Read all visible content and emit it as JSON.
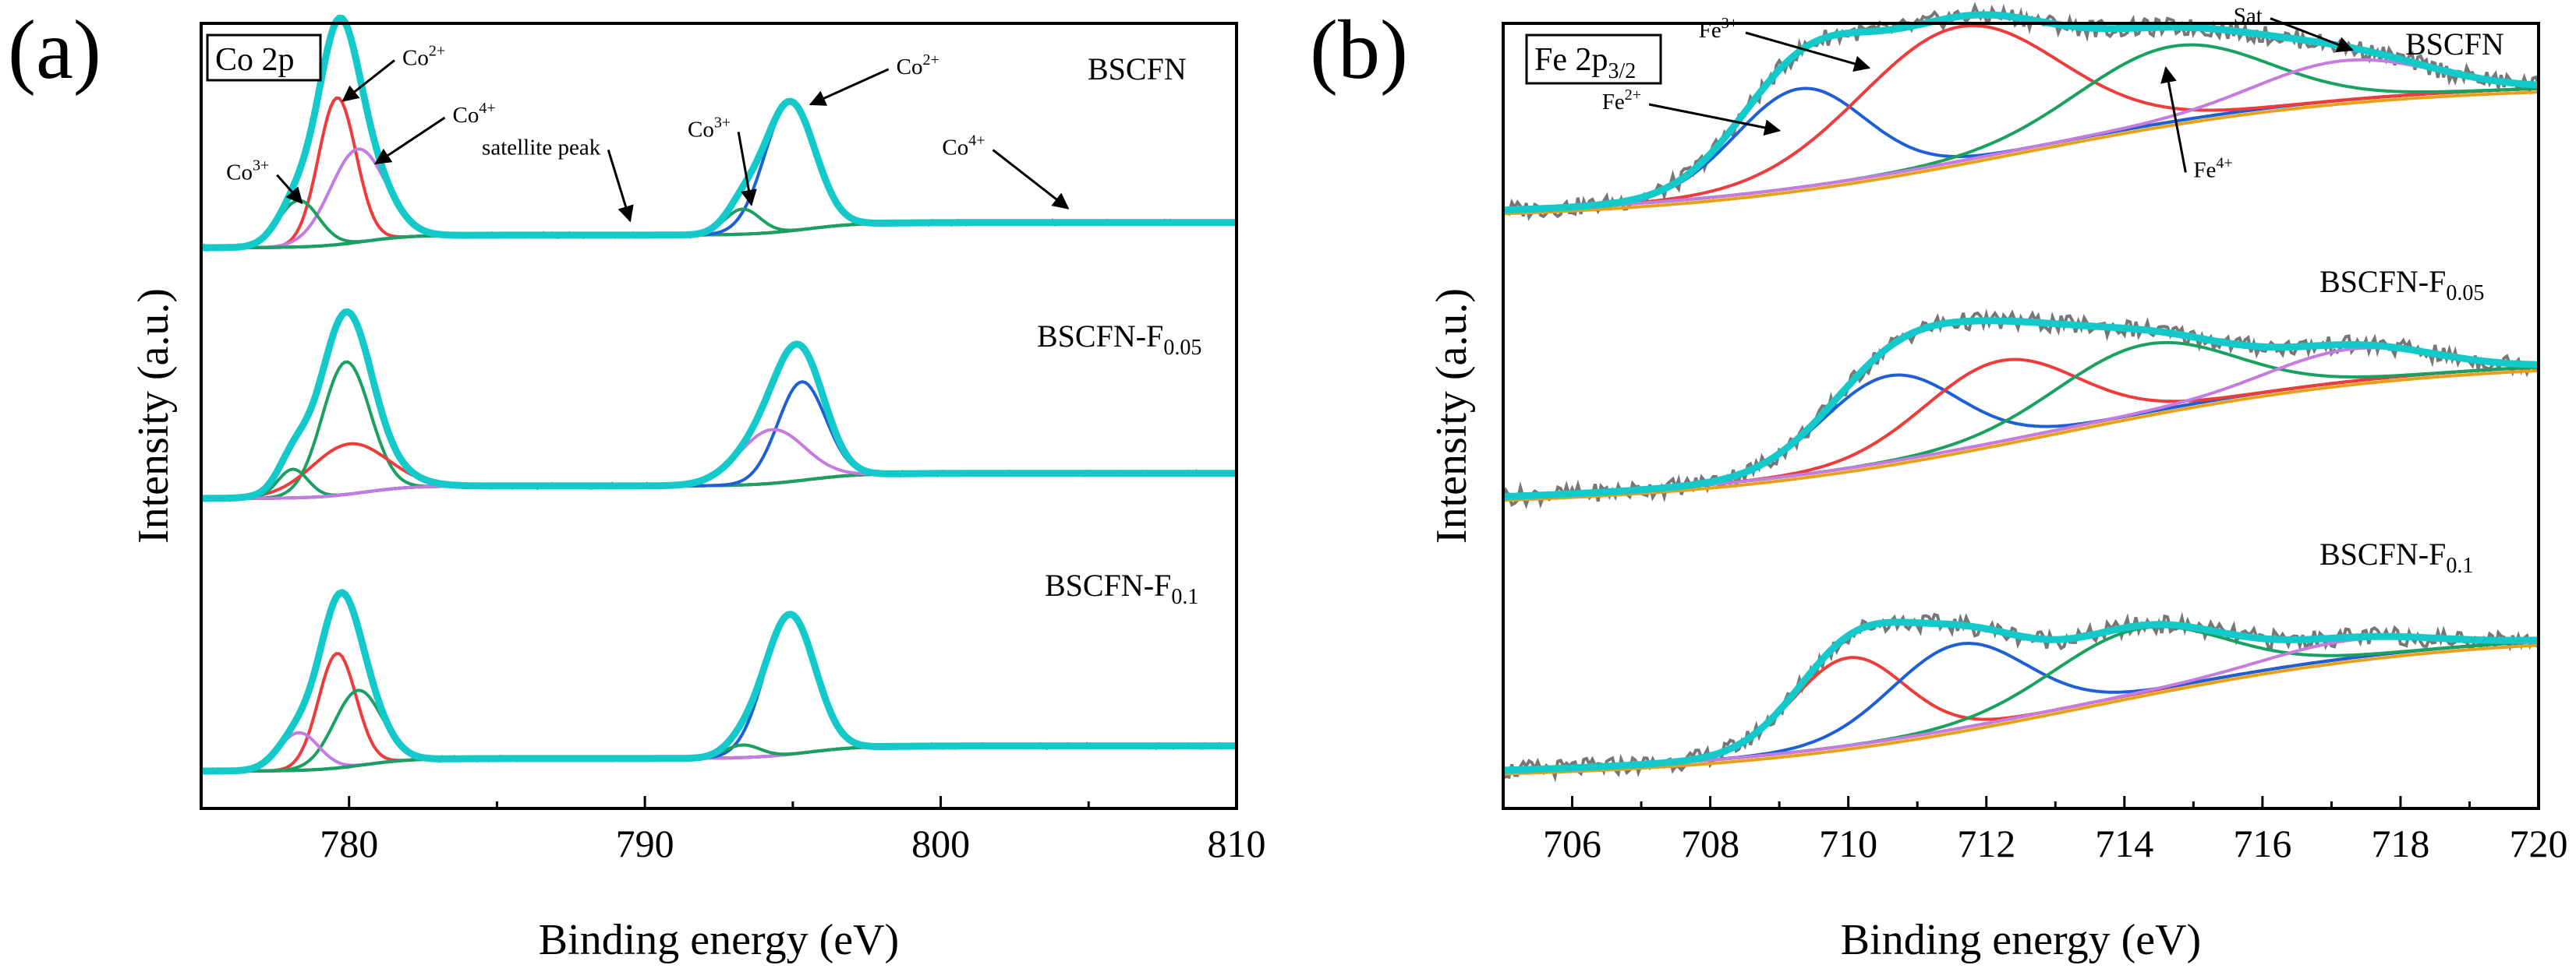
{
  "colors": {
    "experimental": "#777777",
    "envelope": "#14c9c9",
    "background": "#8b8d12",
    "background_alt": "#e8a018",
    "red": "#ee3b3b",
    "green": "#1aa060",
    "blue": "#1f5fd6",
    "magenta": "#c57be0"
  },
  "chart_data": [
    {
      "type": "line",
      "panel": "(a)",
      "element_label": "Co 2p",
      "xlabel": "Binding energy (eV)",
      "ylabel": "Intensity (a.u.)",
      "xlim": [
        775,
        810
      ],
      "x_ticks": [
        780,
        790,
        800,
        810
      ],
      "y_ticks": "none",
      "grid": false,
      "spectra": [
        {
          "sample": "BSCFN",
          "sample_sub": "",
          "baseline": {
            "left": 0.0,
            "right": 0.14,
            "step_center": 780.5,
            "step_width": 0.8,
            "step2_center": 795.5,
            "step2_height": 0.07
          },
          "components": [
            {
              "color": "red",
              "center": 779.6,
              "height": 0.82,
              "fwhm": 1.5
            },
            {
              "color": "magenta",
              "center": 780.3,
              "height": 0.52,
              "fwhm": 2.2
            },
            {
              "color": "green",
              "center": 778.3,
              "height": 0.26,
              "fwhm": 1.6
            },
            {
              "color": "blue",
              "center": 794.9,
              "height": 0.72,
              "fwhm": 2.0
            },
            {
              "color": "green",
              "center": 793.3,
              "height": 0.14,
              "fwhm": 1.4
            }
          ],
          "peak_labels": [
            {
              "text": "Co",
              "sup": "3+",
              "x": 777.3,
              "y": 0.38,
              "arrow_x": 778.4,
              "arrow_y": 0.25
            },
            {
              "text": "Co",
              "sup": "2+",
              "x": 781.8,
              "y": 1.02,
              "arrow_x": 779.8,
              "arrow_y": 0.82
            },
            {
              "text": "Co",
              "sup": "4+",
              "x": 783.5,
              "y": 0.7,
              "arrow_x": 780.9,
              "arrow_y": 0.47
            },
            {
              "text": "satellite peak",
              "sup": "",
              "x": 788.5,
              "y": 0.52,
              "arrow_x": 789.5,
              "arrow_y": 0.15
            },
            {
              "text": "Co",
              "sup": "3+",
              "x": 792.9,
              "y": 0.62,
              "arrow_x": 793.6,
              "arrow_y": 0.24
            },
            {
              "text": "Co",
              "sup": "2+",
              "x": 798.5,
              "y": 0.97,
              "arrow_x": 795.6,
              "arrow_y": 0.8
            },
            {
              "text": "Co",
              "sup": "4+",
              "x": 801.5,
              "y": 0.52,
              "arrow_x": 804.3,
              "arrow_y": 0.22
            }
          ]
        },
        {
          "sample": "BSCFN-F",
          "sample_sub": "0.05",
          "baseline": {
            "left": 0.0,
            "right": 0.14,
            "step_center": 780.5,
            "step_width": 0.8,
            "step2_center": 795.5,
            "step2_height": 0.07
          },
          "components": [
            {
              "color": "green",
              "center": 779.9,
              "height": 0.74,
              "fwhm": 1.9
            },
            {
              "color": "red",
              "center": 780.0,
              "height": 0.28,
              "fwhm": 3.0
            },
            {
              "color": "green",
              "center": 778.1,
              "height": 0.16,
              "fwhm": 1.2
            },
            {
              "color": "blue",
              "center": 795.3,
              "height": 0.55,
              "fwhm": 1.9
            },
            {
              "color": "magenta",
              "center": 794.3,
              "height": 0.3,
              "fwhm": 2.6
            }
          ],
          "peak_labels": []
        },
        {
          "sample": "BSCFN-F",
          "sample_sub": "0.1",
          "baseline": {
            "left": 0.0,
            "right": 0.14,
            "step_center": 780.5,
            "step_width": 0.8,
            "step2_center": 795.5,
            "step2_height": 0.07
          },
          "components": [
            {
              "color": "red",
              "center": 779.6,
              "height": 0.64,
              "fwhm": 1.5
            },
            {
              "color": "green",
              "center": 780.3,
              "height": 0.42,
              "fwhm": 1.9
            },
            {
              "color": "magenta",
              "center": 778.3,
              "height": 0.21,
              "fwhm": 1.6
            },
            {
              "color": "blue",
              "center": 794.9,
              "height": 0.78,
              "fwhm": 2.0
            },
            {
              "color": "green",
              "center": 793.3,
              "height": 0.07,
              "fwhm": 1.4
            }
          ],
          "peak_labels": []
        }
      ]
    },
    {
      "type": "line",
      "panel": "(b)",
      "element_label": "Fe 2p",
      "element_label_sub": "3/2",
      "xlabel": "Binding energy (eV)",
      "ylabel": "Intensity (a.u.)",
      "xlim": [
        705,
        720
      ],
      "x_ticks": [
        706,
        708,
        710,
        712,
        714,
        716,
        718,
        720
      ],
      "y_ticks": "none",
      "grid": false,
      "spectra": [
        {
          "sample": "BSCFN",
          "sample_sub": "",
          "baseline": {
            "left": 0.0,
            "right": 0.75,
            "step_center": 712.5,
            "step_width": 2.5
          },
          "components": [
            {
              "color": "blue",
              "center": 709.3,
              "height": 0.55,
              "fwhm": 2.2
            },
            {
              "color": "red",
              "center": 711.6,
              "height": 0.75,
              "fwhm": 3.4
            },
            {
              "color": "green",
              "center": 714.7,
              "height": 0.42,
              "fwhm": 3.2
            },
            {
              "color": "magenta",
              "center": 717.2,
              "height": 0.22,
              "fwhm": 3.0
            }
          ],
          "peak_labels": [
            {
              "text": "Fe",
              "sup": "2+",
              "x": 707.0,
              "y": 0.6,
              "arrow_x": 709.0,
              "arrow_y": 0.48
            },
            {
              "text": "Fe",
              "sup": "3+",
              "x": 708.4,
              "y": 1.0,
              "arrow_x": 710.3,
              "arrow_y": 0.83
            },
            {
              "text": "Fe",
              "sup": "4+",
              "x": 715.0,
              "y": 0.22,
              "arrow_x": 714.6,
              "arrow_y": 0.83
            },
            {
              "text": "Sat",
              "sup": "",
              "x": 716.0,
              "y": 1.08,
              "arrow_x": 717.3,
              "arrow_y": 0.93
            }
          ]
        },
        {
          "sample": "BSCFN-F",
          "sample_sub": "0.05",
          "baseline": {
            "left": -0.06,
            "right": 0.75,
            "step_center": 713.0,
            "step_width": 2.6
          },
          "components": [
            {
              "color": "blue",
              "center": 710.6,
              "height": 0.48,
              "fwhm": 2.3
            },
            {
              "color": "red",
              "center": 712.2,
              "height": 0.45,
              "fwhm": 2.6
            },
            {
              "color": "green",
              "center": 714.3,
              "height": 0.38,
              "fwhm": 3.0
            },
            {
              "color": "magenta",
              "center": 717.3,
              "height": 0.18,
              "fwhm": 2.8
            }
          ],
          "peak_labels": []
        },
        {
          "sample": "BSCFN-F",
          "sample_sub": "0.1",
          "baseline": {
            "left": -0.06,
            "right": 0.75,
            "step_center": 713.5,
            "step_width": 2.6
          },
          "components": [
            {
              "color": "red",
              "center": 710.0,
              "height": 0.49,
              "fwhm": 1.9
            },
            {
              "color": "blue",
              "center": 711.6,
              "height": 0.47,
              "fwhm": 2.3
            },
            {
              "color": "green",
              "center": 714.2,
              "height": 0.36,
              "fwhm": 2.9
            },
            {
              "color": "magenta",
              "center": 717.3,
              "height": 0.1,
              "fwhm": 2.8
            }
          ],
          "peak_labels": []
        }
      ]
    }
  ]
}
